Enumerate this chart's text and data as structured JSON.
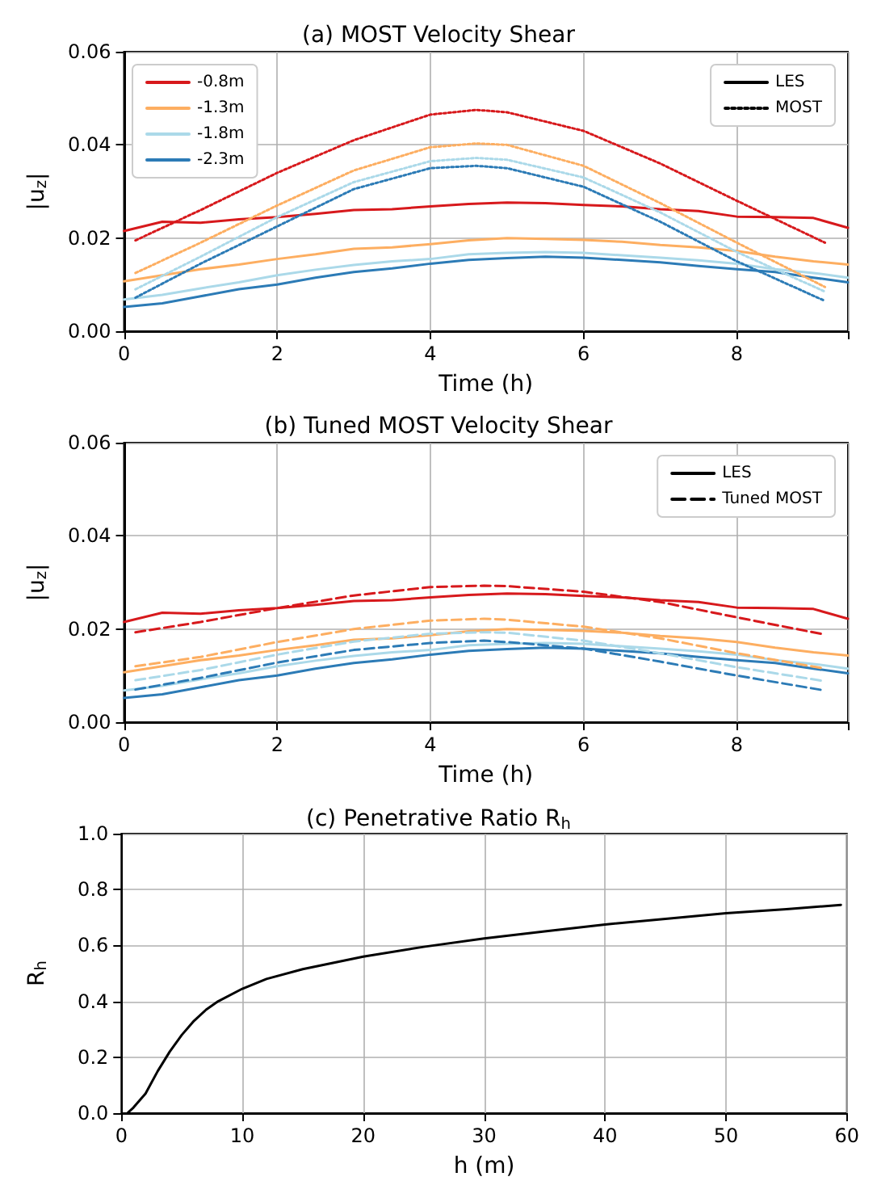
{
  "chart_data": [
    {
      "type": "line",
      "title": "(a) MOST Velocity Shear",
      "xlabel": "Time (h)",
      "ylabel": "|u$_{z}$|",
      "xlim": [
        0,
        9.45
      ],
      "xticks": [
        0,
        2,
        4,
        6,
        8
      ],
      "ylim": [
        0,
        0.06
      ],
      "yticks": [
        {
          "value": 0,
          "label": "0.00"
        },
        {
          "value": 0.02,
          "label": "0.02"
        },
        {
          "value": 0.04,
          "label": "0.04"
        },
        {
          "value": 0.06,
          "label": "0.06"
        }
      ],
      "grid": true,
      "legend": "top left",
      "marker": "none",
      "x": [
        0,
        0.5,
        1,
        1.5,
        2,
        2.5,
        3,
        3.5,
        4,
        4.5,
        5,
        5.5,
        6,
        6.5,
        7,
        7.5,
        8,
        8.5,
        9,
        9.45
      ],
      "series": [
        {
          "name": "-0.8m",
          "color": "#d7191c",
          "line_style": "solid",
          "values": [
            0.0215,
            0.0235,
            0.0233,
            0.024,
            0.0245,
            0.0252,
            0.026,
            0.0262,
            0.0268,
            0.0273,
            0.0276,
            0.0275,
            0.0271,
            0.0268,
            0.0262,
            0.0258,
            0.0246,
            0.0245,
            0.0243,
            0.0222
          ]
        },
        {
          "name": "-1.3m",
          "color": "#fdae61",
          "line_style": "solid",
          "values": [
            0.0107,
            0.012,
            0.0133,
            0.0143,
            0.0155,
            0.0165,
            0.0177,
            0.018,
            0.0187,
            0.0195,
            0.02,
            0.0198,
            0.0196,
            0.0192,
            0.0185,
            0.018,
            0.0172,
            0.016,
            0.015,
            0.0143
          ]
        },
        {
          "name": "-1.8m",
          "color": "#abd9e9",
          "line_style": "solid",
          "values": [
            0.0068,
            0.0078,
            0.0092,
            0.0105,
            0.012,
            0.0132,
            0.0142,
            0.015,
            0.0155,
            0.0165,
            0.0168,
            0.017,
            0.0168,
            0.0163,
            0.0158,
            0.0152,
            0.0145,
            0.0133,
            0.0125,
            0.0115
          ]
        },
        {
          "name": "-2.3m",
          "color": "#2c7bb6",
          "line_style": "solid",
          "values": [
            0.0052,
            0.006,
            0.0075,
            0.009,
            0.01,
            0.0115,
            0.0127,
            0.0135,
            0.0145,
            0.0153,
            0.0157,
            0.016,
            0.0158,
            0.0153,
            0.0148,
            0.014,
            0.0133,
            0.0127,
            0.0115,
            0.0105
          ]
        },
        {
          "color": "#d7191c",
          "line_style": "dotted",
          "x": [
            0.15,
            1,
            2,
            3,
            4,
            4.6,
            5,
            6,
            7,
            8,
            9.15
          ],
          "values": [
            0.0195,
            0.026,
            0.034,
            0.041,
            0.0465,
            0.0475,
            0.047,
            0.043,
            0.036,
            0.028,
            0.019
          ]
        },
        {
          "color": "#fdae61",
          "line_style": "dotted",
          "x": [
            0.15,
            1,
            2,
            3,
            4,
            4.6,
            5,
            6,
            7,
            8,
            9.15
          ],
          "values": [
            0.0125,
            0.019,
            0.027,
            0.0345,
            0.0395,
            0.0403,
            0.04,
            0.0355,
            0.0275,
            0.019,
            0.0095
          ]
        },
        {
          "color": "#abd9e9",
          "line_style": "dotted",
          "x": [
            0.15,
            1,
            2,
            3,
            4,
            4.6,
            5,
            6,
            7,
            8,
            9.15
          ],
          "values": [
            0.009,
            0.016,
            0.0245,
            0.032,
            0.0365,
            0.0372,
            0.0368,
            0.033,
            0.0255,
            0.017,
            0.0085
          ]
        },
        {
          "color": "#2c7bb6",
          "line_style": "dotted",
          "x": [
            0.15,
            1,
            2,
            3,
            4,
            4.6,
            5,
            6,
            7,
            8,
            9.15
          ],
          "values": [
            0.0072,
            0.0145,
            0.0225,
            0.0305,
            0.035,
            0.0355,
            0.035,
            0.031,
            0.0235,
            0.015,
            0.0065
          ]
        },
        {
          "name": "LES",
          "color": "#000000",
          "line_style": "solid",
          "values": [
            null,
            null,
            null,
            null,
            null,
            null,
            null,
            null,
            null,
            null,
            null,
            null,
            null,
            null,
            null,
            null,
            null,
            null,
            null,
            null
          ]
        },
        {
          "name": "MOST",
          "color": "#000000",
          "line_style": "dotted",
          "values": [
            null,
            null,
            null,
            null,
            null,
            null,
            null,
            null,
            null,
            null,
            null,
            null,
            null,
            null,
            null,
            null,
            null,
            null,
            null,
            null
          ]
        }
      ]
    },
    {
      "type": "line",
      "title": "(b) Tuned MOST Velocity Shear",
      "xlabel": "Time (h)",
      "ylabel": "|u$_{z}$|",
      "xlim": [
        0,
        9.45
      ],
      "xticks": [
        0,
        2,
        4,
        6,
        8
      ],
      "ylim": [
        0,
        0.06
      ],
      "yticks": [
        {
          "value": 0,
          "label": "0.00"
        },
        {
          "value": 0.02,
          "label": "0.02"
        },
        {
          "value": 0.04,
          "label": "0.04"
        },
        {
          "value": 0.06,
          "label": "0.06"
        }
      ],
      "grid": true,
      "legend": "top right",
      "marker": "none",
      "x": [
        0,
        0.5,
        1,
        1.5,
        2,
        2.5,
        3,
        3.5,
        4,
        4.5,
        5,
        5.5,
        6,
        6.5,
        7,
        7.5,
        8,
        8.5,
        9,
        9.45
      ],
      "series": [
        {
          "color": "#d7191c",
          "line_style": "solid",
          "values": [
            0.0215,
            0.0235,
            0.0233,
            0.024,
            0.0245,
            0.0252,
            0.026,
            0.0262,
            0.0268,
            0.0273,
            0.0276,
            0.0275,
            0.0271,
            0.0268,
            0.0262,
            0.0258,
            0.0246,
            0.0245,
            0.0243,
            0.0222
          ]
        },
        {
          "color": "#fdae61",
          "line_style": "solid",
          "values": [
            0.0107,
            0.012,
            0.0133,
            0.0143,
            0.0155,
            0.0165,
            0.0177,
            0.018,
            0.0187,
            0.0195,
            0.02,
            0.0198,
            0.0196,
            0.0192,
            0.0185,
            0.018,
            0.0172,
            0.016,
            0.015,
            0.0143
          ]
        },
        {
          "color": "#abd9e9",
          "line_style": "solid",
          "values": [
            0.0068,
            0.0078,
            0.0092,
            0.0105,
            0.012,
            0.0132,
            0.0142,
            0.015,
            0.0155,
            0.0165,
            0.0168,
            0.017,
            0.0168,
            0.0163,
            0.0158,
            0.0152,
            0.0145,
            0.0133,
            0.0125,
            0.0115
          ]
        },
        {
          "color": "#2c7bb6",
          "line_style": "solid",
          "values": [
            0.0052,
            0.006,
            0.0075,
            0.009,
            0.01,
            0.0115,
            0.0127,
            0.0135,
            0.0145,
            0.0153,
            0.0157,
            0.016,
            0.0158,
            0.0153,
            0.0148,
            0.014,
            0.0133,
            0.0127,
            0.0115,
            0.0105
          ]
        },
        {
          "color": "#d7191c",
          "line_style": "dashed",
          "x": [
            0.15,
            1,
            2,
            3,
            4,
            4.7,
            5,
            6,
            7,
            8,
            9.15
          ],
          "values": [
            0.0193,
            0.0215,
            0.0245,
            0.0272,
            0.029,
            0.0293,
            0.0292,
            0.028,
            0.0258,
            0.0225,
            0.0188
          ]
        },
        {
          "color": "#fdae61",
          "line_style": "dashed",
          "x": [
            0.15,
            1,
            2,
            3,
            4,
            4.7,
            5,
            6,
            7,
            8,
            9.15
          ],
          "values": [
            0.012,
            0.014,
            0.0172,
            0.02,
            0.0218,
            0.0222,
            0.022,
            0.0205,
            0.018,
            0.0148,
            0.0115
          ]
        },
        {
          "color": "#abd9e9",
          "line_style": "dashed",
          "x": [
            0.15,
            1,
            2,
            3,
            4,
            4.7,
            5,
            6,
            7,
            8,
            9.15
          ],
          "values": [
            0.009,
            0.0112,
            0.0145,
            0.0173,
            0.019,
            0.0193,
            0.0192,
            0.0175,
            0.0148,
            0.0118,
            0.0088
          ]
        },
        {
          "color": "#2c7bb6",
          "line_style": "dashed",
          "x": [
            0.15,
            1,
            2,
            3,
            4,
            4.7,
            5,
            6,
            7,
            8,
            9.15
          ],
          "values": [
            0.007,
            0.0095,
            0.0128,
            0.0155,
            0.017,
            0.0175,
            0.0172,
            0.0158,
            0.013,
            0.01,
            0.0068
          ]
        },
        {
          "name": "LES",
          "color": "#000000",
          "line_style": "solid",
          "values": [
            null,
            null,
            null,
            null,
            null,
            null,
            null,
            null,
            null,
            null,
            null,
            null,
            null,
            null,
            null,
            null,
            null,
            null,
            null,
            null
          ]
        },
        {
          "name": "Tuned MOST",
          "color": "#000000",
          "line_style": "dashed",
          "values": [
            null,
            null,
            null,
            null,
            null,
            null,
            null,
            null,
            null,
            null,
            null,
            null,
            null,
            null,
            null,
            null,
            null,
            null,
            null,
            null
          ]
        }
      ]
    },
    {
      "type": "line",
      "title": "(c) Penetrative Ratio R$_{h}$",
      "xlabel": "h (m)",
      "ylabel": "R$_{h}$",
      "xlim": [
        0,
        60
      ],
      "xticks": [
        0,
        10,
        20,
        30,
        40,
        50,
        60
      ],
      "ylim": [
        0,
        1
      ],
      "yticks": [
        {
          "value": 0,
          "label": "0.0"
        },
        {
          "value": 0.2,
          "label": "0.2"
        },
        {
          "value": 0.4,
          "label": "0.4"
        },
        {
          "value": 0.6,
          "label": "0.6"
        },
        {
          "value": 0.8,
          "label": "0.8"
        },
        {
          "value": 1,
          "label": "1.0"
        }
      ],
      "grid": true,
      "marker": "none",
      "x": [
        0.5,
        1,
        2,
        3,
        4,
        5,
        6,
        7,
        8,
        10,
        12,
        15,
        20,
        25,
        30,
        35,
        40,
        45,
        50,
        55,
        59.5
      ],
      "series": [
        {
          "color": "#000000",
          "line_style": "solid",
          "values": [
            0,
            0.02,
            0.07,
            0.15,
            0.22,
            0.28,
            0.33,
            0.37,
            0.4,
            0.445,
            0.48,
            0.515,
            0.56,
            0.595,
            0.625,
            0.65,
            0.675,
            0.695,
            0.715,
            0.73,
            0.745
          ]
        }
      ]
    }
  ]
}
